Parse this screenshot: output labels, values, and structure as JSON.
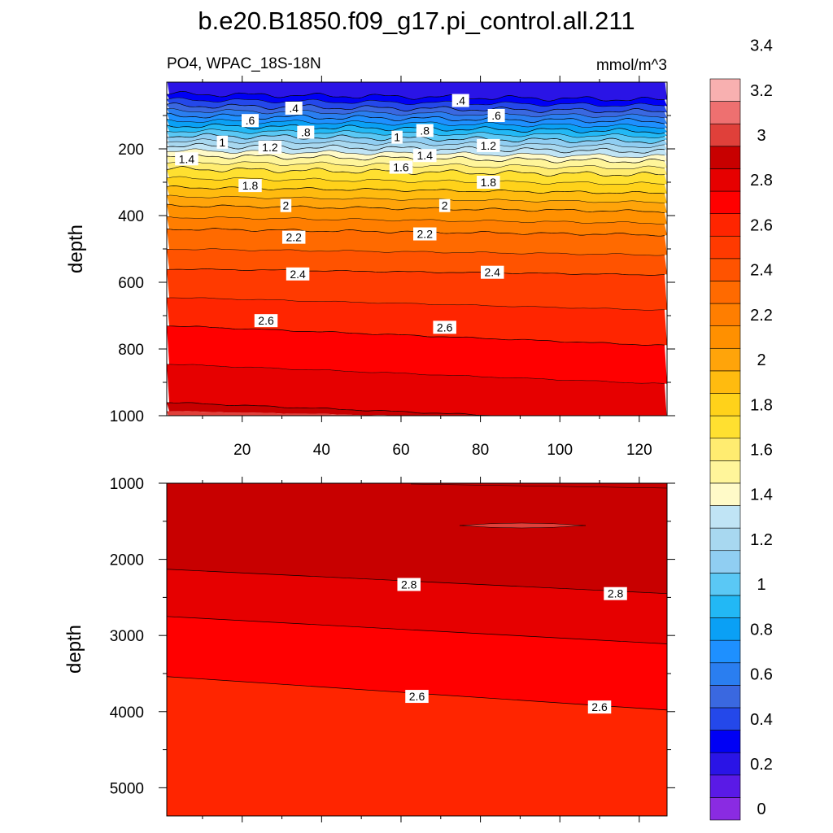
{
  "title": "b.e20.B1850.f09_g17.pi_control.all.211",
  "left_subtitle": "PO4, WPAC_18S-18N",
  "right_subtitle": "mmol/m^3",
  "chart_data": [
    {
      "type": "heatmap",
      "panel": "upper",
      "ylabel": "depth",
      "xlabel": "",
      "xlim": [
        1,
        127
      ],
      "ylim": [
        0,
        1000
      ],
      "y_reversed": true,
      "x_ticks": [
        "20",
        "40",
        "60",
        "80",
        "100",
        "120"
      ],
      "y_ticks": [
        "200",
        "400",
        "600",
        "800",
        "1000"
      ],
      "contour_depths": [
        {
          "level": 0.2,
          "depth": 35
        },
        {
          "level": 0.4,
          "depth": 70
        },
        {
          "level": 0.6,
          "depth": 100
        },
        {
          "level": 0.8,
          "depth": 130
        },
        {
          "level": 1.0,
          "depth": 160
        },
        {
          "level": 1.2,
          "depth": 190
        },
        {
          "level": 1.4,
          "depth": 220
        },
        {
          "level": 1.6,
          "depth": 260
        },
        {
          "level": 1.8,
          "depth": 315
        },
        {
          "level": 2.0,
          "depth": 370
        },
        {
          "level": 2.2,
          "depth": 440
        },
        {
          "level": 2.4,
          "depth": 560
        },
        {
          "level": 2.6,
          "depth": 730
        },
        {
          "level": 2.8,
          "depth": 960
        }
      ],
      "contour_labels": [
        {
          "text": ".4",
          "x": 33,
          "y": 78
        },
        {
          "text": ".4",
          "x": 75,
          "y": 55
        },
        {
          "text": ".6",
          "x": 22,
          "y": 115
        },
        {
          "text": ".6",
          "x": 84,
          "y": 100
        },
        {
          "text": ".8",
          "x": 36,
          "y": 150
        },
        {
          "text": ".8",
          "x": 66,
          "y": 145
        },
        {
          "text": "1",
          "x": 15,
          "y": 180
        },
        {
          "text": "1",
          "x": 59,
          "y": 165
        },
        {
          "text": "1.2",
          "x": 27,
          "y": 195
        },
        {
          "text": "1.2",
          "x": 82,
          "y": 190
        },
        {
          "text": "1.4",
          "x": 6,
          "y": 230
        },
        {
          "text": "1.4",
          "x": 66,
          "y": 220
        },
        {
          "text": "1.6",
          "x": 60,
          "y": 255
        },
        {
          "text": "1.8",
          "x": 22,
          "y": 310
        },
        {
          "text": "1.8",
          "x": 82,
          "y": 300
        },
        {
          "text": "2",
          "x": 31,
          "y": 370
        },
        {
          "text": "2",
          "x": 71,
          "y": 370
        },
        {
          "text": "2.2",
          "x": 33,
          "y": 465
        },
        {
          "text": "2.2",
          "x": 66,
          "y": 455
        },
        {
          "text": "2.4",
          "x": 34,
          "y": 575
        },
        {
          "text": "2.4",
          "x": 83,
          "y": 570
        },
        {
          "text": "2.6",
          "x": 26,
          "y": 715
        },
        {
          "text": "2.6",
          "x": 71,
          "y": 735
        }
      ]
    },
    {
      "type": "heatmap",
      "panel": "lower",
      "ylabel": "depth",
      "xlabel": "",
      "xlim": [
        1,
        127
      ],
      "ylim": [
        1000,
        5370
      ],
      "y_reversed": true,
      "y_ticks": [
        "1000",
        "2000",
        "3000",
        "4000",
        "5000"
      ],
      "contour_depths": [
        {
          "level": 2.8,
          "depth_left": 2130,
          "depth_right": 2450
        },
        {
          "level": 2.7,
          "depth_left": 2750,
          "depth_right": 3110
        },
        {
          "level": 2.6,
          "depth_left": 3540,
          "depth_right": 3980
        }
      ],
      "contour_labels": [
        {
          "text": "2.8",
          "x": 62,
          "y": 2330
        },
        {
          "text": "2.8",
          "x": 114,
          "y": 2450
        },
        {
          "text": "2.6",
          "x": 64,
          "y": 3800
        },
        {
          "text": "2.6",
          "x": 110,
          "y": 3940
        }
      ]
    }
  ],
  "colorbar": {
    "levels": [
      "0",
      "0.2",
      "0.4",
      "0.6",
      "0.8",
      "1",
      "1.2",
      "1.4",
      "1.6",
      "1.8",
      "2",
      "2.2",
      "2.4",
      "2.6",
      "2.8",
      "3",
      "3.2",
      "3.4"
    ],
    "colors": [
      "#8a2be2",
      "#5a1ae6",
      "#2a14e6",
      "#0000f5",
      "#2448ea",
      "#3a68e0",
      "#2a7ef0",
      "#1e90ff",
      "#0aa0f5",
      "#22b8f5",
      "#5ac8f5",
      "#90cef2",
      "#a8d8f0",
      "#c0e4f5",
      "#fffac8",
      "#fff59a",
      "#ffec70",
      "#ffe030",
      "#ffd21a",
      "#ffbb0f",
      "#ffa40a",
      "#ff9000",
      "#ff7e00",
      "#ff6a00",
      "#ff5300",
      "#ff3a00",
      "#ff2500",
      "#ff0000",
      "#e60000",
      "#c80000",
      "#e0403a",
      "#ee7070",
      "#f8b0b0"
    ]
  }
}
